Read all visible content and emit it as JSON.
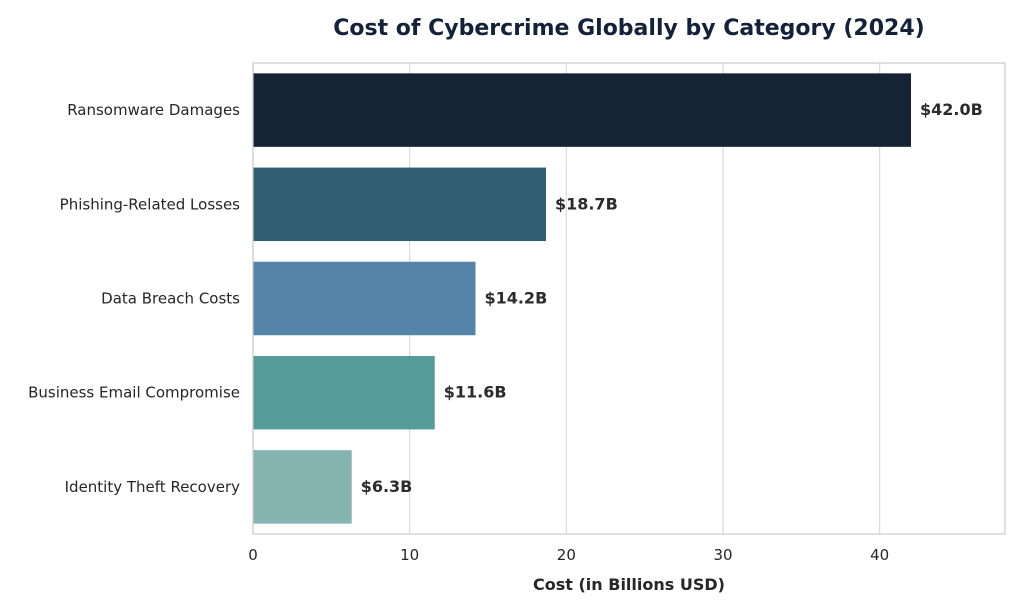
{
  "chart_data": {
    "type": "bar",
    "orientation": "horizontal",
    "title": "Cost of Cybercrime Globally by Category (2024)",
    "xlabel": "Cost (in Billions USD)",
    "ylabel": "",
    "xlim": [
      0,
      48
    ],
    "xticks": [
      0,
      10,
      20,
      30,
      40
    ],
    "grid": true,
    "categories": [
      "Ransomware Damages",
      "Phishing-Related Losses",
      "Data Breach Costs",
      "Business Email Compromise",
      "Identity Theft Recovery"
    ],
    "values": [
      42.0,
      18.7,
      14.2,
      11.6,
      6.3
    ],
    "value_labels": [
      "$42.0B",
      "$18.7B",
      "$14.2B",
      "$11.6B",
      "$6.3B"
    ],
    "colors": [
      "#152334",
      "#305e70",
      "#5584a8",
      "#559b98",
      "#86b5b1"
    ]
  }
}
